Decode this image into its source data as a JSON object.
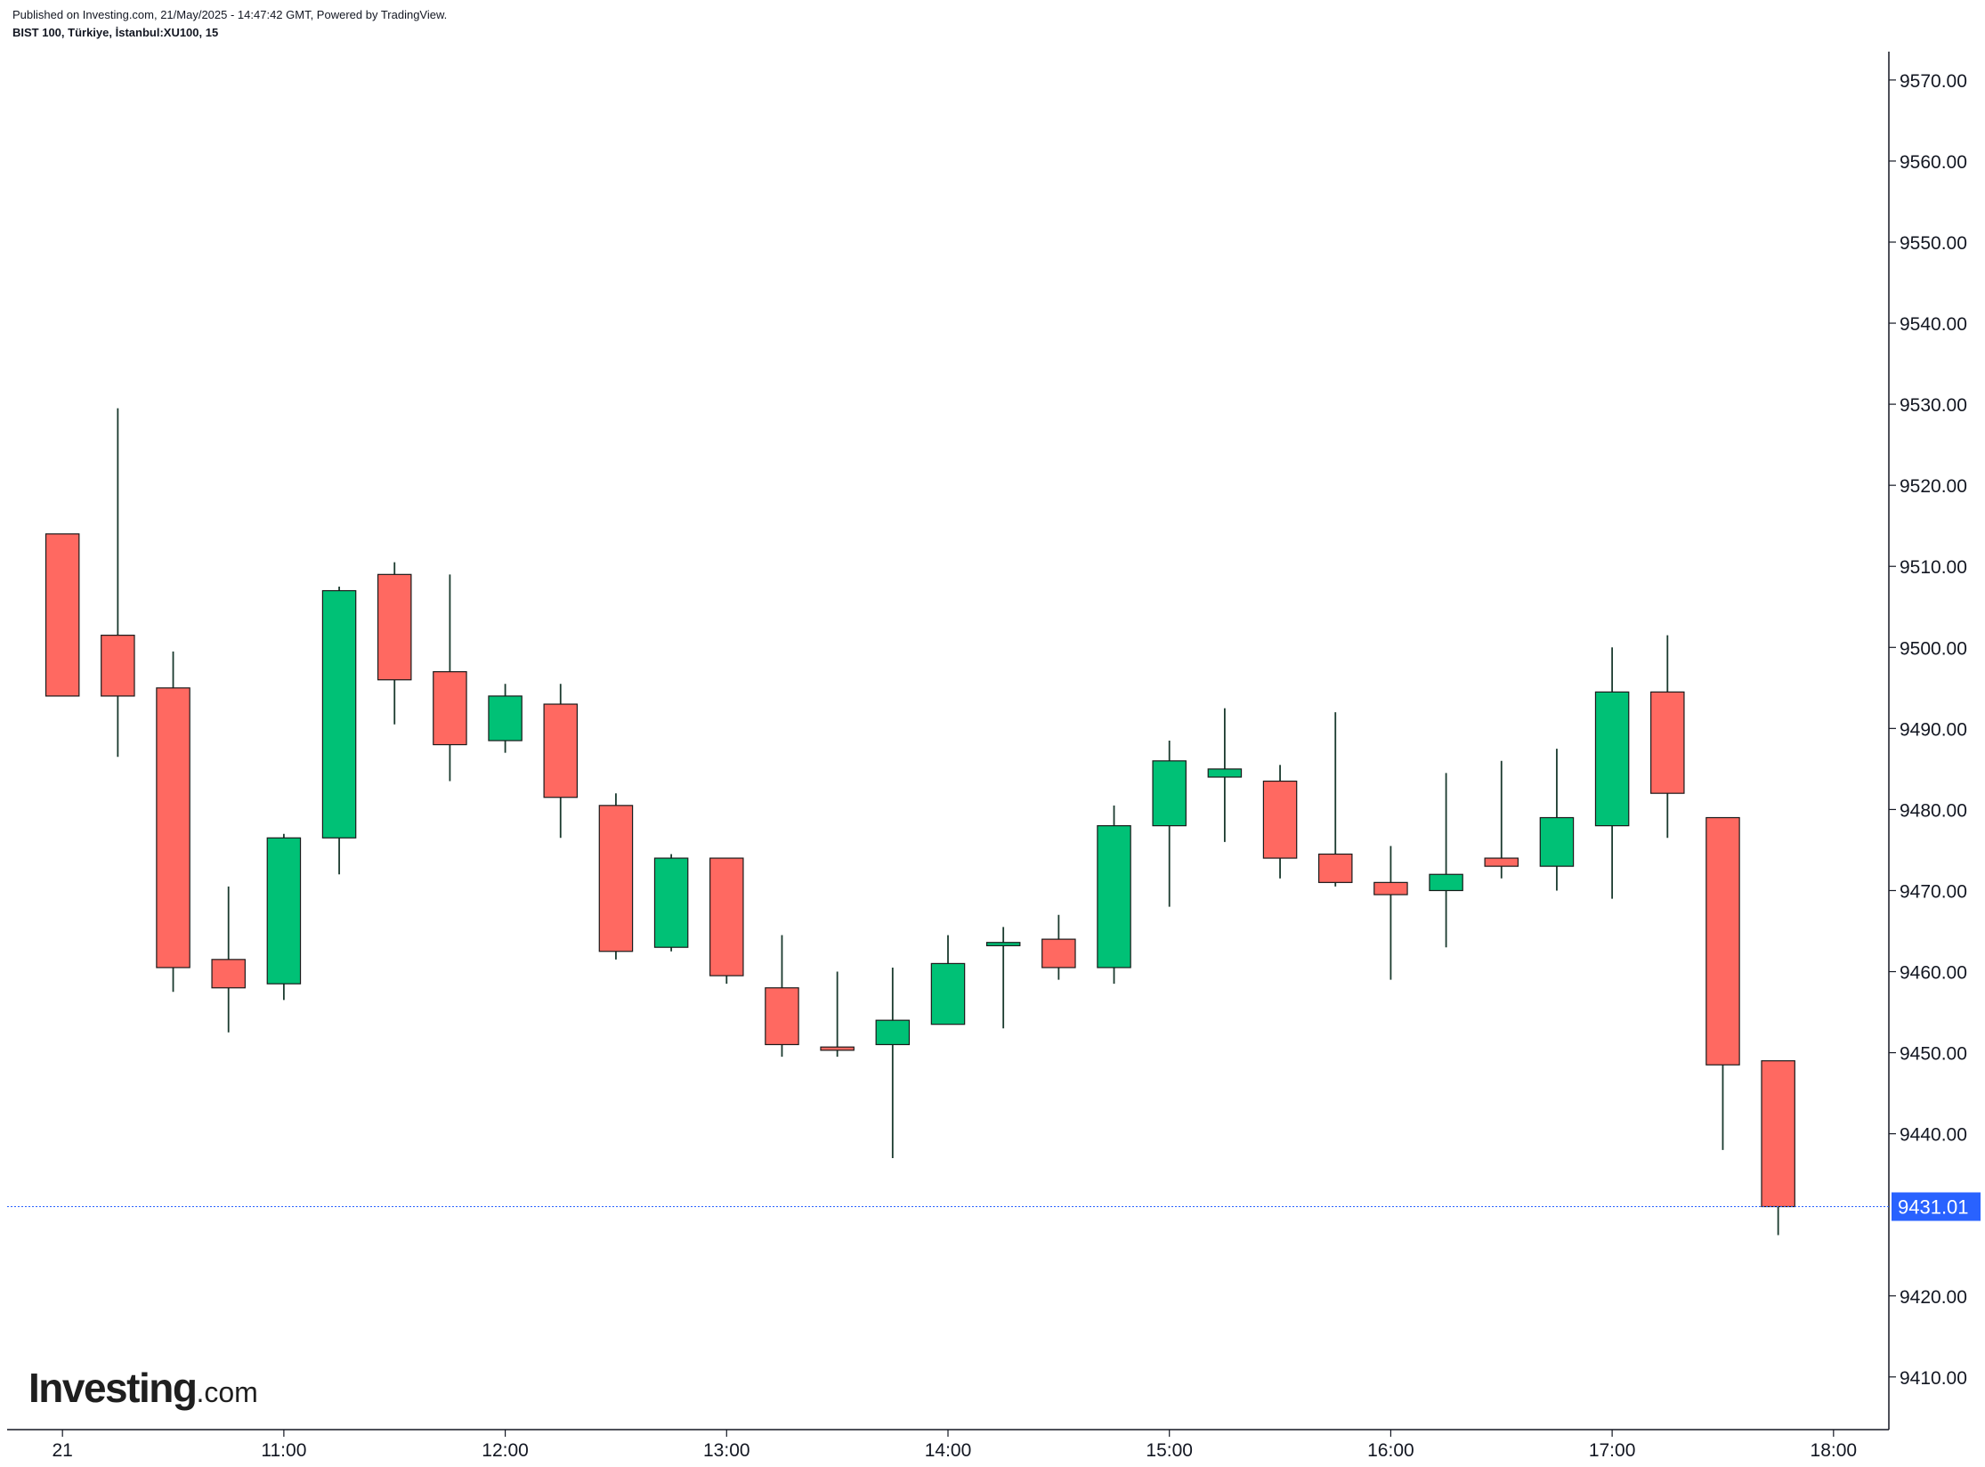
{
  "header": {
    "published": "Published on Investing.com, 21/May/2025 - 14:47:42 GMT, Powered by TradingView.",
    "symbol": "BIST 100, Türkiye, İstanbul:XU100, 15"
  },
  "logo": {
    "word": "Investing",
    "suffix": ".com"
  },
  "colors": {
    "up": "#00c176",
    "down": "#ff6961",
    "wick": "#1a3a2e",
    "price_line": "#2962ff",
    "axis": "#131722"
  },
  "chart_data": {
    "type": "candlestick",
    "title": "",
    "xlabel": "",
    "ylabel": "",
    "interval_minutes": 15,
    "x_range": [
      "09:45",
      "18:15"
    ],
    "ylim": [
      9403.5,
      9573.5
    ],
    "y_ticks": [
      9410,
      9420,
      9440,
      9450,
      9460,
      9470,
      9480,
      9490,
      9500,
      9510,
      9520,
      9530,
      9540,
      9550,
      9560,
      9570
    ],
    "y_tick_labels": [
      "9410.00",
      "9420.00",
      "9440.00",
      "9450.00",
      "9460.00",
      "9470.00",
      "9480.00",
      "9490.00",
      "9500.00",
      "9510.00",
      "9520.00",
      "9530.00",
      "9540.00",
      "9550.00",
      "9560.00",
      "9570.00"
    ],
    "x_ticks": [
      "10:00",
      "11:00",
      "12:00",
      "13:00",
      "14:00",
      "15:00",
      "16:00",
      "17:00",
      "18:00"
    ],
    "x_tick_labels": [
      "21",
      "11:00",
      "12:00",
      "13:00",
      "14:00",
      "15:00",
      "16:00",
      "17:00",
      "18:00"
    ],
    "last_price": 9431.01,
    "last_price_label": "9431.01",
    "candles": [
      {
        "t": "10:00",
        "o": 9514.0,
        "h": 9514.0,
        "l": 9494.0,
        "c": 9494.0
      },
      {
        "t": "10:15",
        "o": 9501.5,
        "h": 9529.5,
        "l": 9486.5,
        "c": 9494.0
      },
      {
        "t": "10:30",
        "o": 9495.0,
        "h": 9499.5,
        "l": 9457.5,
        "c": 9460.5
      },
      {
        "t": "10:45",
        "o": 9461.5,
        "h": 9470.5,
        "l": 9452.5,
        "c": 9458.0
      },
      {
        "t": "11:00",
        "o": 9458.5,
        "h": 9477.0,
        "l": 9456.5,
        "c": 9476.5
      },
      {
        "t": "11:15",
        "o": 9476.5,
        "h": 9507.5,
        "l": 9472.0,
        "c": 9507.0
      },
      {
        "t": "11:30",
        "o": 9509.0,
        "h": 9510.5,
        "l": 9490.5,
        "c": 9496.0
      },
      {
        "t": "11:45",
        "o": 9497.0,
        "h": 9509.0,
        "l": 9483.5,
        "c": 9488.0
      },
      {
        "t": "12:00",
        "o": 9488.5,
        "h": 9495.5,
        "l": 9487.0,
        "c": 9494.0
      },
      {
        "t": "12:15",
        "o": 9493.0,
        "h": 9495.5,
        "l": 9476.5,
        "c": 9481.5
      },
      {
        "t": "12:30",
        "o": 9480.5,
        "h": 9482.0,
        "l": 9461.5,
        "c": 9462.5
      },
      {
        "t": "12:45",
        "o": 9463.0,
        "h": 9474.5,
        "l": 9462.5,
        "c": 9474.0
      },
      {
        "t": "13:00",
        "o": 9474.0,
        "h": 9474.0,
        "l": 9458.5,
        "c": 9459.5
      },
      {
        "t": "13:15",
        "o": 9458.0,
        "h": 9464.5,
        "l": 9449.5,
        "c": 9451.0
      },
      {
        "t": "13:30",
        "o": 9450.7,
        "h": 9460.0,
        "l": 9449.5,
        "c": 9450.3
      },
      {
        "t": "13:45",
        "o": 9451.0,
        "h": 9460.5,
        "l": 9437.0,
        "c": 9454.0
      },
      {
        "t": "14:00",
        "o": 9453.5,
        "h": 9464.5,
        "l": 9453.5,
        "c": 9461.0
      },
      {
        "t": "14:15",
        "o": 9463.2,
        "h": 9465.5,
        "l": 9453.0,
        "c": 9463.6
      },
      {
        "t": "14:30",
        "o": 9464.0,
        "h": 9467.0,
        "l": 9459.0,
        "c": 9460.5
      },
      {
        "t": "14:45",
        "o": 9460.5,
        "h": 9480.5,
        "l": 9458.5,
        "c": 9478.0
      },
      {
        "t": "15:00",
        "o": 9478.0,
        "h": 9488.5,
        "l": 9468.0,
        "c": 9486.0
      },
      {
        "t": "15:15",
        "o": 9484.0,
        "h": 9492.5,
        "l": 9476.0,
        "c": 9485.0
      },
      {
        "t": "15:30",
        "o": 9483.5,
        "h": 9485.5,
        "l": 9471.5,
        "c": 9474.0
      },
      {
        "t": "15:45",
        "o": 9474.5,
        "h": 9492.0,
        "l": 9470.5,
        "c": 9471.0
      },
      {
        "t": "16:00",
        "o": 9471.0,
        "h": 9475.5,
        "l": 9459.0,
        "c": 9469.5
      },
      {
        "t": "16:15",
        "o": 9470.0,
        "h": 9484.5,
        "l": 9463.0,
        "c": 9472.0
      },
      {
        "t": "16:30",
        "o": 9474.0,
        "h": 9486.0,
        "l": 9471.5,
        "c": 9473.0
      },
      {
        "t": "16:45",
        "o": 9473.0,
        "h": 9487.5,
        "l": 9470.0,
        "c": 9479.0
      },
      {
        "t": "17:00",
        "o": 9478.0,
        "h": 9500.0,
        "l": 9469.0,
        "c": 9494.5
      },
      {
        "t": "17:15",
        "o": 9494.5,
        "h": 9501.5,
        "l": 9476.5,
        "c": 9482.0
      },
      {
        "t": "17:30",
        "o": 9479.0,
        "h": 9479.0,
        "l": 9438.0,
        "c": 9448.5
      },
      {
        "t": "17:45",
        "o": 9449.0,
        "h": 9449.0,
        "l": 9427.5,
        "c": 9431.01
      }
    ]
  }
}
